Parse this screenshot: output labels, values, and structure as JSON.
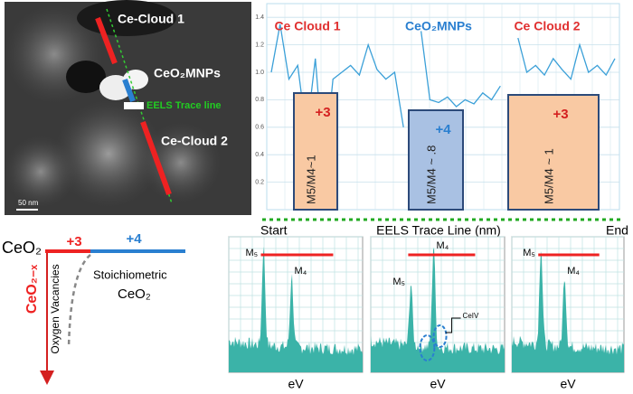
{
  "micrograph": {
    "labels": [
      "Ce-Cloud 1",
      "CeO₂MNPs",
      "EELS Trace line",
      "Ce-Cloud 2"
    ],
    "scale_bar": "50 nm"
  },
  "trace_plot": {
    "ylim": [
      0,
      1.5
    ],
    "yticks": [
      0.2,
      0.4,
      0.6,
      0.8,
      {
        "value": 1,
        "label": "1.0"
      },
      1.2,
      1.4
    ],
    "regions": [
      "Ce Cloud 1",
      "CeO₂MNPs",
      "Ce Cloud 2"
    ],
    "boxes": [
      {
        "state": "+3",
        "ratio": "M5/M4~1"
      },
      {
        "state": "+4",
        "ratio": "M5/M4 ~ .8"
      },
      {
        "state": "+3",
        "ratio": "M5/M4 ~ 1"
      }
    ],
    "values": [
      1.0,
      1.35,
      0.95,
      1.05,
      0.55,
      1.1,
      0.3,
      0.95,
      1.0,
      1.05,
      0.98,
      1.2,
      1.02,
      0.95,
      1.0,
      0.6,
      null,
      1.3,
      0.8,
      0.78,
      0.82,
      0.75,
      0.8,
      0.77,
      0.85,
      0.8,
      0.9,
      null,
      1.25,
      1.0,
      1.05,
      0.98,
      1.1,
      1.02,
      0.95,
      1.2,
      1.0,
      1.05,
      0.98,
      1.1
    ]
  },
  "x_axis": {
    "start": "Start",
    "title": "EELS Trace Line  (nm)",
    "end": "End"
  },
  "band_diagram": {
    "formula": "CeO₂",
    "plus3": "+3",
    "plus4": "+4",
    "vacancy_formula": "CeO₂₋ₓ",
    "oxygen": "Oxygen Vacancies",
    "stoich": "Stoichiometric",
    "stoich_formula": "CeO₂"
  },
  "spectra": [
    {
      "m5": "M₅",
      "m4": "M₄",
      "xlabel": "eV"
    },
    {
      "m5": "M₅",
      "m4": "M₄",
      "xlabel": "eV",
      "annotation": "CeIV"
    },
    {
      "m5": "M₅",
      "m4": "M₄",
      "xlabel": "eV"
    }
  ]
}
